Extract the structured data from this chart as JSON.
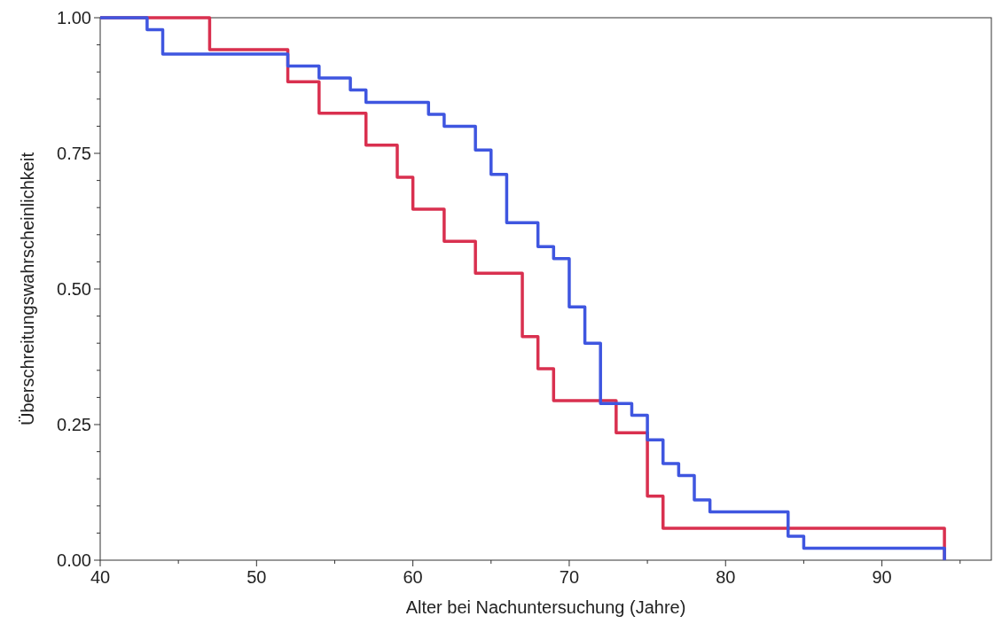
{
  "chart_data": {
    "type": "step",
    "xlabel": "Alter bei Nachuntersuchung (Jahre)",
    "ylabel": "Überschreitungswahrscheinlichkeit",
    "xlim": [
      40,
      97
    ],
    "ylim": [
      0,
      1
    ],
    "xticks": [
      40,
      {
        "value": 45,
        "label": null
      },
      50,
      {
        "value": 55,
        "label": null
      },
      60,
      {
        "value": 65,
        "label": null
      },
      70,
      {
        "value": 75,
        "label": null
      },
      80,
      {
        "value": 85,
        "label": null
      },
      90,
      {
        "value": 95,
        "label": null
      }
    ],
    "yticks": [
      {
        "value": 0,
        "label": "0.00"
      },
      {
        "value": 0.05,
        "label": null
      },
      {
        "value": 0.1,
        "label": null
      },
      {
        "value": 0.15,
        "label": null
      },
      {
        "value": 0.2,
        "label": null
      },
      {
        "value": 0.25,
        "label": "0.25"
      },
      {
        "value": 0.3,
        "label": null
      },
      {
        "value": 0.35,
        "label": null
      },
      {
        "value": 0.4,
        "label": null
      },
      {
        "value": 0.45,
        "label": null
      },
      {
        "value": 0.5,
        "label": "0.50"
      },
      {
        "value": 0.55,
        "label": null
      },
      {
        "value": 0.6,
        "label": null
      },
      {
        "value": 0.65,
        "label": null
      },
      {
        "value": 0.7,
        "label": null
      },
      {
        "value": 0.75,
        "label": "0.75"
      },
      {
        "value": 0.8,
        "label": null
      },
      {
        "value": 0.85,
        "label": null
      },
      {
        "value": 0.9,
        "label": null
      },
      {
        "value": 0.95,
        "label": null
      },
      {
        "value": 1,
        "label": "1.00"
      }
    ],
    "grid": false,
    "series": [
      {
        "color": "#d9304f",
        "x": [
          40,
          47,
          52,
          54,
          57,
          59,
          60,
          62,
          64,
          67,
          68,
          69,
          73,
          75,
          76,
          94
        ],
        "values": [
          1,
          0.941,
          0.882,
          0.824,
          0.765,
          0.706,
          0.647,
          0.588,
          0.529,
          0.412,
          0.353,
          0.294,
          0.235,
          0.118,
          0.059,
          0
        ]
      },
      {
        "color": "#3f56e0",
        "x": [
          40,
          43,
          44,
          52,
          54,
          56,
          57,
          61,
          62,
          64,
          65,
          66,
          68,
          69,
          70,
          71,
          72,
          74,
          75,
          76,
          77,
          78,
          79,
          84,
          85,
          94
        ],
        "values": [
          1,
          0.978,
          0.933,
          0.911,
          0.889,
          0.867,
          0.844,
          0.822,
          0.8,
          0.756,
          0.711,
          0.622,
          0.578,
          0.556,
          0.467,
          0.4,
          0.289,
          0.267,
          0.222,
          0.178,
          0.156,
          0.111,
          0.089,
          0.044,
          0.022,
          0
        ]
      }
    ]
  }
}
